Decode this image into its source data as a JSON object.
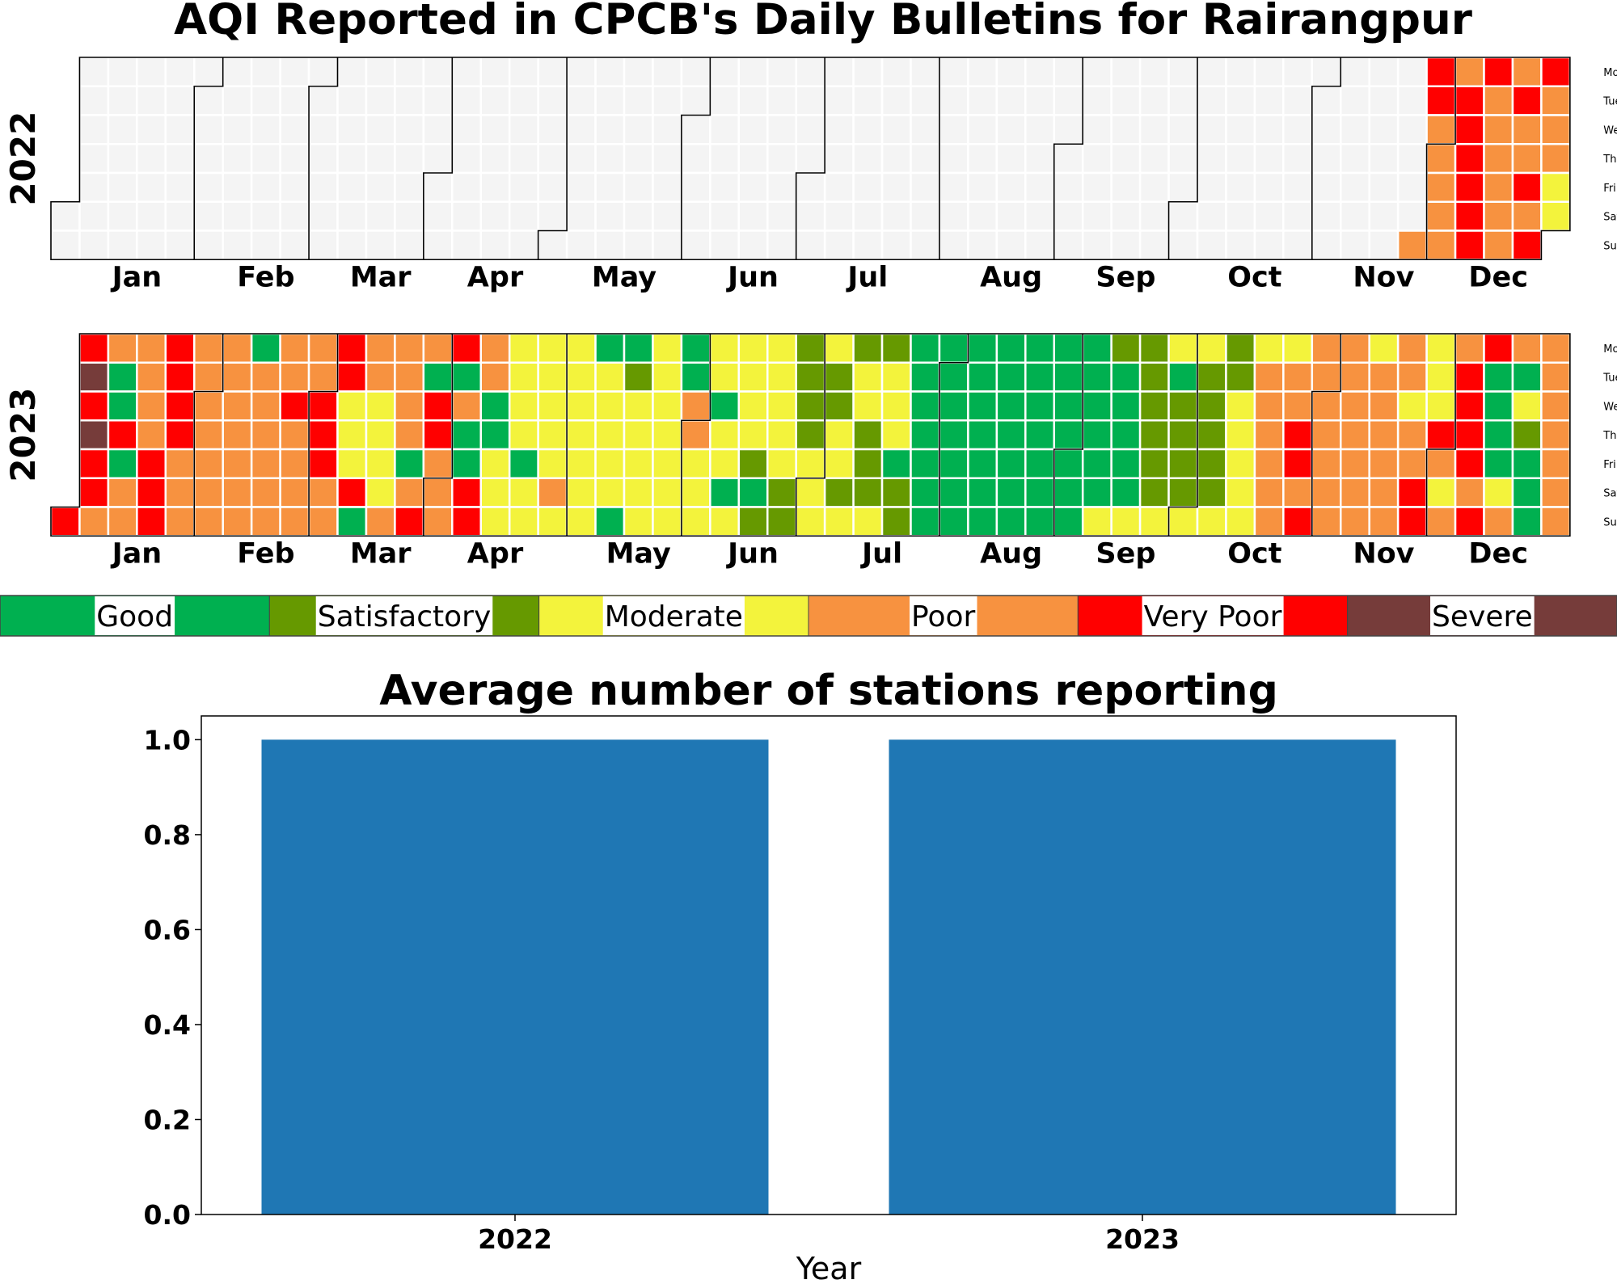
{
  "title": "AQI Reported in CPCB's Daily Bulletins for Rairangpur",
  "colors": {
    "no_data": "#f4f4f4",
    "Good": "#00b050",
    "Satisfactory": "#669900",
    "Moderate": "#f3f33c",
    "Poor": "#f79240",
    "Very Poor": "#ff0000",
    "Severe": "#763c3a",
    "bar": "#1f77b4"
  },
  "legend": [
    "Good",
    "Satisfactory",
    "Moderate",
    "Poor",
    "Very Poor",
    "Severe"
  ],
  "calendar": {
    "weekdays": [
      "Mon",
      "Tue",
      "Wed",
      "Thu",
      "Fri",
      "Sat",
      "Sun"
    ],
    "months": [
      "Jan",
      "Feb",
      "Mar",
      "Apr",
      "May",
      "Jun",
      "Jul",
      "Aug",
      "Sep",
      "Oct",
      "Nov",
      "Dec"
    ],
    "category_codes": {
      "G": "Good",
      "S": "Satisfactory",
      "M": "Moderate",
      "P": "Poor",
      "V": "Very Poor",
      "X": "Severe"
    },
    "years": [
      {
        "year": "2022",
        "start_date": "2022-11-27",
        "days": "PVVPPPPPPVVVVVVVPPPPPPPVPPVPVVPPPMMPMPPM"
      },
      {
        "year": "2023",
        "start_date": "2023-01-01",
        "days": "VVXVXVVPPGGVGPPPPPPVVVVVVVPPPPPPPPPPPPPPPPPGPPPPPPPPVPPPPPPVVVPPVVMMMVGPPMMMMPPPPPGPVPGVVPPPVGPGGVVPPGGMMMMMMMGMMMMMMMPMMMMMMMMGMMMMMGGSMMMMMMMMMMMMGGPPMMMMMGMMGMMMMMSGSMMMMMSSSSSSMMMMSSMMSMSMMSSSMSMMMGSSGGGGGGGGGGGGGGGGGGGGGGGGGGGGGGGGGGGGGGGGGGGGGGGGMSGGGGGMSSSSSSMMGSSSSMMSSSSSMSSMMMMMMPPPPPPMPPVVPVPPPPPPPPPPPPPPMPPPPPPPPMPPVVMMMVPMPPVVVVPVVGGGGMPPGMSGGGPPPPPPPVGVVVVVPGVVVVV"
      }
    ]
  },
  "bar_chart": {
    "chart_data": {
      "type": "bar",
      "title": "Average number of stations reporting",
      "categories": [
        "2022",
        "2023"
      ],
      "values": [
        1.0,
        1.0
      ],
      "xlabel": "Year",
      "ylabel": "",
      "ylim": [
        0,
        1.05
      ],
      "yticks": [
        0.0,
        0.2,
        0.4,
        0.6,
        0.8,
        1.0
      ],
      "ytick_labels": [
        "0.0",
        "0.2",
        "0.4",
        "0.6",
        "0.8",
        "1.0"
      ]
    }
  }
}
